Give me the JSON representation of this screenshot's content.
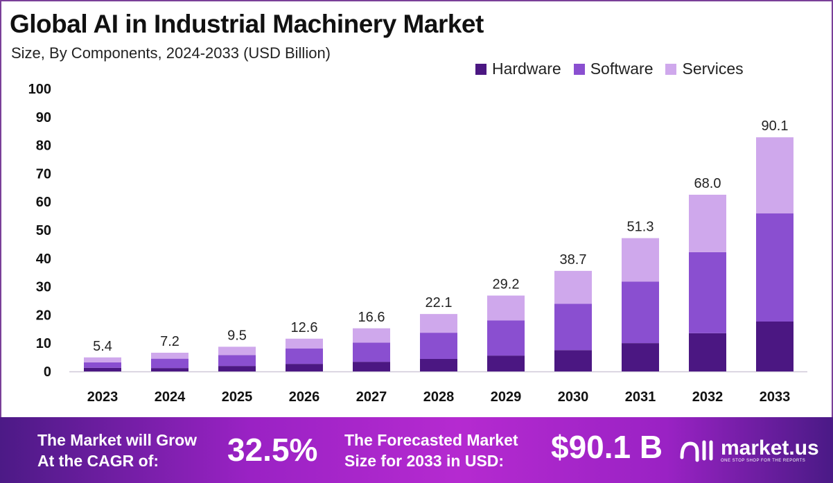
{
  "header": {
    "title": "Global AI in Industrial Machinery Market",
    "subtitle": "Size, By Components, 2024-2033 (USD Billion)"
  },
  "legend": [
    {
      "label": "Hardware",
      "color": "#4b1782"
    },
    {
      "label": "Software",
      "color": "#8a4fd0"
    },
    {
      "label": "Services",
      "color": "#cfa8ec"
    }
  ],
  "chart_data": {
    "type": "bar",
    "stacked": true,
    "title": "Global AI in Industrial Machinery Market",
    "subtitle": "Size, By Components, 2024-2033 (USD Billion)",
    "xlabel": "",
    "ylabel": "",
    "ylim": [
      0,
      100
    ],
    "yticks": [
      "0",
      "10",
      "20",
      "30",
      "40",
      "50",
      "60",
      "70",
      "80",
      "90",
      "100"
    ],
    "grid": false,
    "legend_position": "top-right",
    "categories": [
      "2023",
      "2024",
      "2025",
      "2026",
      "2027",
      "2028",
      "2029",
      "2030",
      "2031",
      "2032",
      "2033"
    ],
    "totals": [
      "5.4",
      "7.2",
      "9.5",
      "12.6",
      "16.6",
      "22.1",
      "29.2",
      "38.7",
      "51.3",
      "68.0",
      "90.1"
    ],
    "series": [
      {
        "name": "Hardware",
        "values": [
          1.4,
          1.3,
          2.1,
          2.9,
          3.7,
          4.8,
          6.1,
          8.2,
          10.9,
          14.7,
          19.2
        ]
      },
      {
        "name": "Software",
        "values": [
          2.1,
          3.6,
          4.2,
          5.9,
          7.4,
          10.1,
          13.5,
          17.8,
          23.7,
          31.2,
          41.6
        ]
      },
      {
        "name": "Services",
        "values": [
          1.9,
          2.3,
          3.2,
          3.8,
          5.5,
          7.2,
          9.6,
          12.7,
          16.7,
          22.1,
          29.3
        ]
      }
    ]
  },
  "banner": {
    "cagr_label_line1": "The Market will Grow",
    "cagr_label_line2": "At the CAGR of:",
    "cagr_value": "32.5%",
    "forecast_label_line1": "The Forecasted Market",
    "forecast_label_line2": "Size for 2033 in USD:",
    "forecast_value": "$90.1 B",
    "logo_name": "market.us",
    "logo_tagline": "ONE STOP SHOP FOR THE REPORTS"
  }
}
